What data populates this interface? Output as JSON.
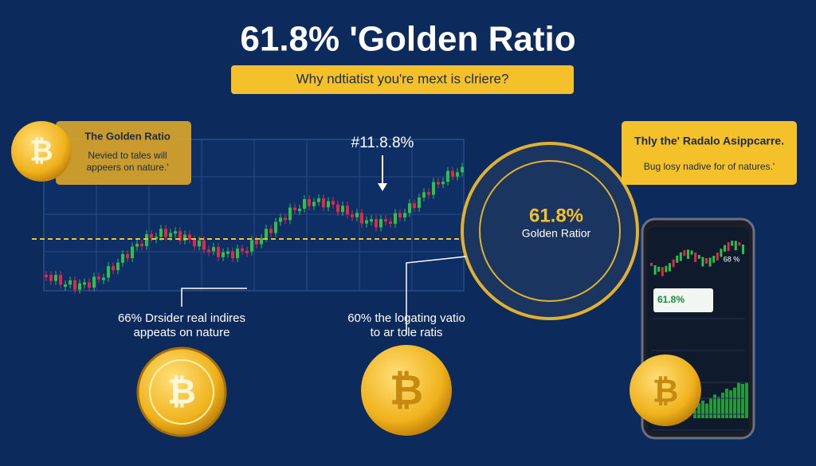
{
  "header": {
    "title": "61.8% 'Golden Ratio",
    "subtitle": "Why ndtiatist you're mext is clriere?"
  },
  "left_card": {
    "title": "The Golden Ratio",
    "lines": [
      "Nevied to tales will",
      "appeers on nature.'"
    ]
  },
  "chart": {
    "annotation": "#11.8.8%"
  },
  "right_card": {
    "title": "Thly the' Radalo Asippcarre.",
    "text": "Bug losy nadive for of natures.'"
  },
  "circle": {
    "value": "61.8%",
    "label": "Golden Ratior"
  },
  "bottom_left": {
    "lines": [
      "66% Drsider real indires",
      "appeats on nature"
    ]
  },
  "bottom_middle": {
    "lines": [
      "60% the logating vatio",
      "to ar tole ratis"
    ]
  },
  "phone": {
    "value": "61.8%",
    "side_value": "68 %"
  }
}
